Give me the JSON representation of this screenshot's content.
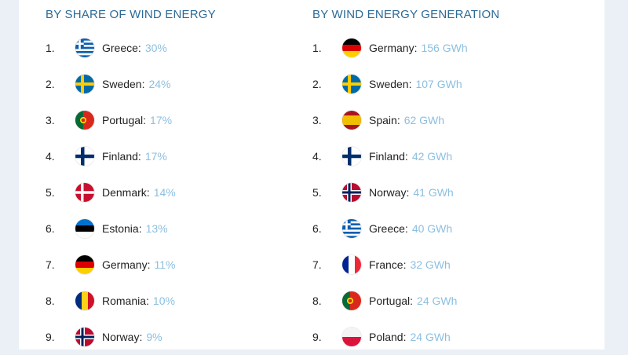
{
  "share": {
    "heading": "BY SHARE OF WIND ENERGY",
    "items": [
      {
        "rank": "1.",
        "country": "Greece",
        "value": "30%",
        "flag": "greece-flag-icon"
      },
      {
        "rank": "2.",
        "country": "Sweden",
        "value": "24%",
        "flag": "sweden-flag-icon"
      },
      {
        "rank": "3.",
        "country": "Portugal",
        "value": "17%",
        "flag": "portugal-flag-icon"
      },
      {
        "rank": "4.",
        "country": "Finland",
        "value": "17%",
        "flag": "finland-flag-icon"
      },
      {
        "rank": "5.",
        "country": "Denmark",
        "value": "14%",
        "flag": "denmark-flag-icon"
      },
      {
        "rank": "6.",
        "country": "Estonia",
        "value": "13%",
        "flag": "estonia-flag-icon"
      },
      {
        "rank": "7.",
        "country": "Germany",
        "value": "11%",
        "flag": "germany-flag-icon"
      },
      {
        "rank": "8.",
        "country": "Romania",
        "value": "10%",
        "flag": "romania-flag-icon"
      },
      {
        "rank": "9.",
        "country": "Norway",
        "value": "9%",
        "flag": "norway-flag-icon"
      }
    ]
  },
  "generation": {
    "heading": "BY WIND ENERGY GENERATION",
    "items": [
      {
        "rank": "1.",
        "country": "Germany",
        "value": "156 GWh",
        "flag": "germany-flag-icon"
      },
      {
        "rank": "2.",
        "country": "Sweden",
        "value": "107 GWh",
        "flag": "sweden-flag-icon"
      },
      {
        "rank": "3.",
        "country": "Spain",
        "value": "62 GWh",
        "flag": "spain-flag-icon"
      },
      {
        "rank": "4.",
        "country": "Finland",
        "value": "42 GWh",
        "flag": "finland-flag-icon"
      },
      {
        "rank": "5.",
        "country": "Norway",
        "value": "41 GWh",
        "flag": "norway-flag-icon"
      },
      {
        "rank": "6.",
        "country": "Greece",
        "value": "40 GWh",
        "flag": "greece-flag-icon"
      },
      {
        "rank": "7.",
        "country": "France",
        "value": "32 GWh",
        "flag": "france-flag-icon"
      },
      {
        "rank": "8.",
        "country": "Portugal",
        "value": "24 GWh",
        "flag": "portugal-flag-icon"
      },
      {
        "rank": "9.",
        "country": "Poland",
        "value": "24 GWh",
        "flag": "poland-flag-icon"
      }
    ]
  },
  "colors": {
    "heading": "#2c6a97",
    "value": "#8bbfe0",
    "text": "#222222",
    "background": "#eaf0f6"
  }
}
